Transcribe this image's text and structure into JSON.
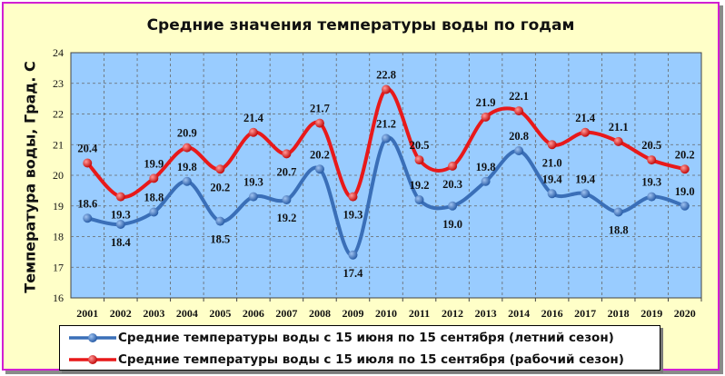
{
  "chart_data": {
    "type": "line",
    "title": "Средние значения температуры воды по годам",
    "ylabel": "Температура воды, Град. С",
    "xlabel": "",
    "ylim": [
      16,
      24
    ],
    "yticks": [
      16,
      17,
      18,
      19,
      20,
      21,
      22,
      23,
      24
    ],
    "grid": true,
    "legend_position": "bottom",
    "categories": [
      "2001",
      "2002",
      "2003",
      "2004",
      "2005",
      "2006",
      "2007",
      "2008",
      "2009",
      "2010",
      "2011",
      "2012",
      "2013",
      "2014",
      "2016",
      "2017",
      "2018",
      "2019",
      "2020"
    ],
    "series": [
      {
        "name": "Средние температуры воды с 15 июня по 15 сентября (летний сезон)",
        "color": "#3a6fb8",
        "values": [
          18.6,
          18.4,
          18.8,
          19.8,
          18.5,
          19.3,
          19.2,
          20.2,
          17.4,
          21.2,
          19.2,
          19.0,
          19.8,
          20.8,
          19.4,
          19.4,
          18.8,
          19.3,
          19.0
        ],
        "labels": [
          "18.6",
          "18.4",
          "18.8",
          "19.8",
          "18.5",
          "19.3",
          "19.2",
          "20.2",
          "17.4",
          "21.2",
          "19.2",
          "19.0",
          "19.8",
          "20.8",
          "19.4",
          "19.4",
          "18.8",
          "19.3",
          "19.0"
        ]
      },
      {
        "name": "Средние температуры воды с 15 июля по 15 сентября (рабочий сезон)",
        "color": "#e8191a",
        "values": [
          20.4,
          19.3,
          19.9,
          20.9,
          20.2,
          21.4,
          20.7,
          21.7,
          19.3,
          22.8,
          20.5,
          20.3,
          21.9,
          22.1,
          21.0,
          21.4,
          21.1,
          20.5,
          20.2
        ],
        "labels": [
          "20.4",
          "19.3",
          "19.9",
          "20.9",
          "20.2",
          "21.4",
          "20.7",
          "21.7",
          "19.3",
          "22.8",
          "20.5",
          "20.3",
          "21.9",
          "22.1",
          "21.0",
          "21.4",
          "21.1",
          "20.5",
          "20.2"
        ]
      }
    ],
    "colors": {
      "plot_background": "#99ccff",
      "frame_border": "#d21fd2",
      "frame_background": "#ffffc8",
      "grid": "#666666"
    }
  }
}
